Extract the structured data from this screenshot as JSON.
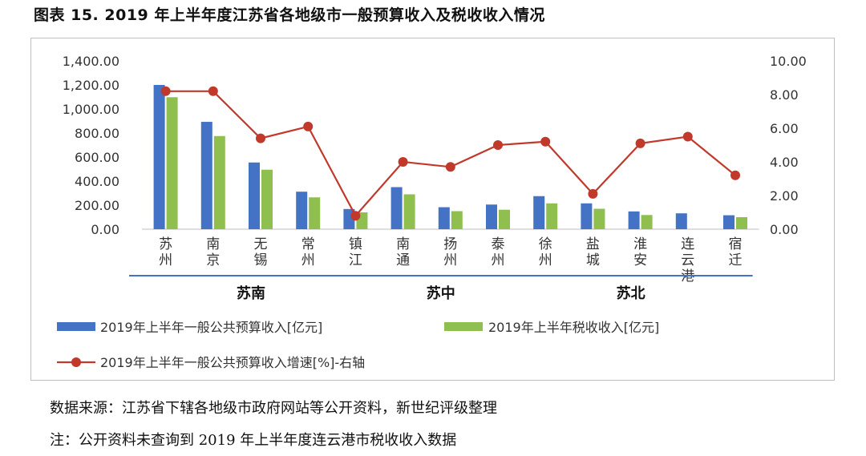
{
  "title": "图表 15. 2019 年上半年度江苏省各地级市一般预算收入及税收收入情况",
  "notes": {
    "source": "数据来源：江苏省下辖各地级市政府网站等公开资料，新世纪评级整理",
    "note": "注：公开资料未查询到 2019 年上半年度连云港市税收收入数据"
  },
  "colors": {
    "budget": "#4472c4",
    "tax": "#8fbf4f",
    "growth": "#c0392b"
  },
  "chart_data": {
    "type": "bar",
    "categories": [
      "苏州",
      "南京",
      "无锡",
      "常州",
      "镇江",
      "南通",
      "扬州",
      "泰州",
      "徐州",
      "盐城",
      "淮安",
      "连云港",
      "宿迁"
    ],
    "groups": [
      {
        "name": "苏南",
        "from": 0,
        "to": 4
      },
      {
        "name": "苏中",
        "from": 5,
        "to": 7
      },
      {
        "name": "苏北",
        "from": 8,
        "to": 12
      }
    ],
    "series": [
      {
        "name": "2019年上半年一般公共预算收入[亿元]",
        "type": "bar",
        "axis": "left",
        "values": [
          1200,
          893,
          555,
          312,
          168,
          350,
          183,
          205,
          275,
          215,
          148,
          132,
          116
        ]
      },
      {
        "name": "2019年上半年税收收入[亿元]",
        "type": "bar",
        "axis": "left",
        "values": [
          1098,
          775,
          495,
          265,
          140,
          290,
          150,
          162,
          215,
          170,
          118,
          null,
          100
        ]
      },
      {
        "name": "2019年上半年一般公共预算收入增速[%]-右轴",
        "type": "line",
        "axis": "right",
        "values": [
          8.2,
          8.2,
          5.4,
          6.1,
          0.8,
          4.0,
          3.7,
          5.0,
          5.2,
          2.1,
          5.1,
          5.5,
          3.2
        ]
      }
    ],
    "y_left": {
      "min": 0,
      "max": 1400,
      "ticks": [
        "0.00",
        "200.00",
        "400.00",
        "600.00",
        "800.00",
        "1,000.00",
        "1,200.00",
        "1,400.00"
      ]
    },
    "y_right": {
      "min": 0,
      "max": 10,
      "ticks": [
        "0.00",
        "2.00",
        "4.00",
        "6.00",
        "8.00",
        "10.00"
      ]
    },
    "grid": false,
    "legend": "bottom"
  }
}
